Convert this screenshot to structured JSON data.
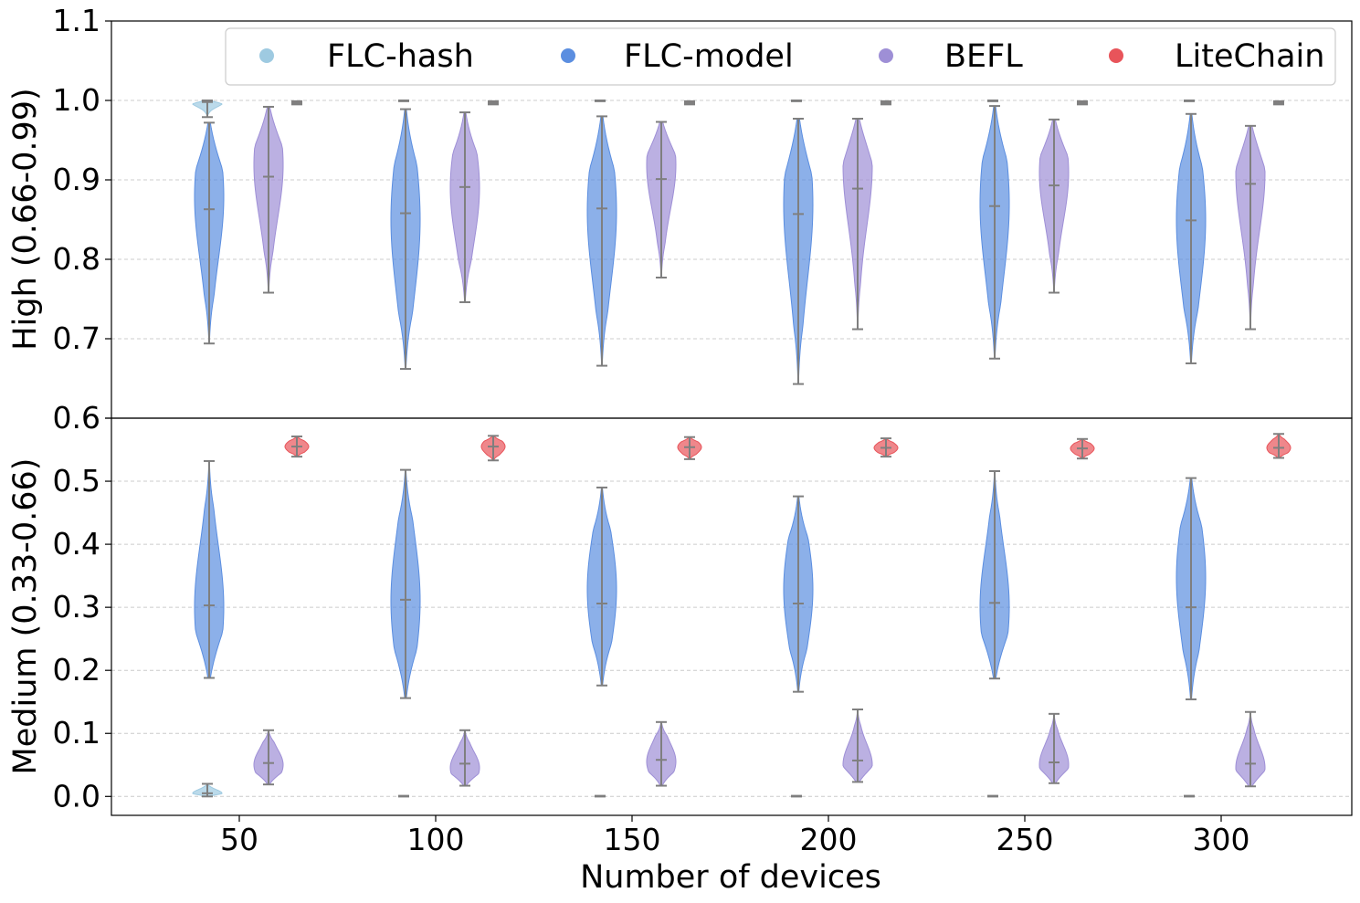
{
  "chart_data": {
    "type": "violin",
    "xlabel": "Number of devices",
    "groups": [
      50,
      100,
      150,
      200,
      250,
      300
    ],
    "series_names": [
      "FLC-hash",
      "FLC-model",
      "BEFL",
      "LiteChain"
    ],
    "colors": {
      "FLC-hash": "#9ecae1",
      "FLC-model": "#5b8ee0",
      "BEFL": "#9e8fd6",
      "LiteChain": "#e8545a"
    },
    "whisker_color": "#7f7f7f",
    "legend": {
      "placement": "top",
      "entries": [
        "FLC-hash",
        "FLC-model",
        "BEFL",
        "LiteChain"
      ]
    },
    "panels": [
      {
        "name": "top",
        "ylabel": "High (0.66-0.99)",
        "ylim": [
          0.6,
          1.1
        ],
        "yticks": [
          "0.6",
          "0.7",
          "0.8",
          "0.9",
          "1.0",
          "1.1"
        ],
        "grid": true,
        "series": [
          {
            "name": "FLC-hash",
            "data": [
              {
                "min": 0.979,
                "median": 0.998,
                "max": 1.0,
                "mode": 0.998
              },
              {
                "min": 0.999,
                "median": 1.0,
                "max": 1.0,
                "mode": 1.0
              },
              {
                "min": 0.999,
                "median": 1.0,
                "max": 1.0,
                "mode": 1.0
              },
              {
                "min": 0.999,
                "median": 1.0,
                "max": 1.0,
                "mode": 1.0
              },
              {
                "min": 0.999,
                "median": 1.0,
                "max": 1.0,
                "mode": 1.0
              },
              {
                "min": 0.999,
                "median": 1.0,
                "max": 1.0,
                "mode": 1.0
              }
            ]
          },
          {
            "name": "FLC-model",
            "data": [
              {
                "min": 0.694,
                "median": 0.863,
                "max": 0.972,
                "mode": 0.88
              },
              {
                "min": 0.662,
                "median": 0.858,
                "max": 0.989,
                "mode": 0.85
              },
              {
                "min": 0.666,
                "median": 0.864,
                "max": 0.98,
                "mode": 0.86
              },
              {
                "min": 0.643,
                "median": 0.857,
                "max": 0.977,
                "mode": 0.87
              },
              {
                "min": 0.675,
                "median": 0.867,
                "max": 0.993,
                "mode": 0.87
              },
              {
                "min": 0.669,
                "median": 0.849,
                "max": 0.983,
                "mode": 0.85
              }
            ]
          },
          {
            "name": "BEFL",
            "data": [
              {
                "min": 0.758,
                "median": 0.904,
                "max": 0.992,
                "mode": 0.92
              },
              {
                "min": 0.746,
                "median": 0.891,
                "max": 0.985,
                "mode": 0.89
              },
              {
                "min": 0.777,
                "median": 0.901,
                "max": 0.973,
                "mode": 0.92
              },
              {
                "min": 0.712,
                "median": 0.889,
                "max": 0.977,
                "mode": 0.92
              },
              {
                "min": 0.758,
                "median": 0.893,
                "max": 0.976,
                "mode": 0.91
              },
              {
                "min": 0.712,
                "median": 0.895,
                "max": 0.968,
                "mode": 0.91
              }
            ]
          },
          {
            "name": "LiteChain",
            "data": [
              {
                "min": 0.995,
                "median": 0.997,
                "max": 0.999,
                "mode": 0.997
              },
              {
                "min": 0.995,
                "median": 0.997,
                "max": 0.999,
                "mode": 0.997
              },
              {
                "min": 0.995,
                "median": 0.997,
                "max": 0.999,
                "mode": 0.997
              },
              {
                "min": 0.995,
                "median": 0.997,
                "max": 0.999,
                "mode": 0.997
              },
              {
                "min": 0.995,
                "median": 0.997,
                "max": 0.999,
                "mode": 0.997
              },
              {
                "min": 0.995,
                "median": 0.997,
                "max": 0.999,
                "mode": 0.997
              }
            ]
          }
        ]
      },
      {
        "name": "bottom",
        "ylabel": "Medium (0.33-0.66)",
        "ylim": [
          -0.03,
          0.6
        ],
        "yticks": [
          "0.0",
          "0.1",
          "0.2",
          "0.3",
          "0.4",
          "0.5",
          "0.6"
        ],
        "grid": true,
        "series": [
          {
            "name": "FLC-hash",
            "data": [
              {
                "min": 0.0,
                "median": 0.005,
                "max": 0.02,
                "mode": 0.005
              },
              {
                "min": 0.0,
                "median": 0.0,
                "max": 0.001,
                "mode": 0.0
              },
              {
                "min": 0.0,
                "median": 0.0,
                "max": 0.001,
                "mode": 0.0
              },
              {
                "min": 0.0,
                "median": 0.0,
                "max": 0.001,
                "mode": 0.0
              },
              {
                "min": 0.0,
                "median": 0.0,
                "max": 0.001,
                "mode": 0.0
              },
              {
                "min": 0.0,
                "median": 0.0,
                "max": 0.001,
                "mode": 0.0
              }
            ]
          },
          {
            "name": "FLC-model",
            "data": [
              {
                "min": 0.188,
                "median": 0.303,
                "max": 0.532,
                "mode": 0.3
              },
              {
                "min": 0.156,
                "median": 0.312,
                "max": 0.518,
                "mode": 0.31
              },
              {
                "min": 0.176,
                "median": 0.306,
                "max": 0.49,
                "mode": 0.33
              },
              {
                "min": 0.166,
                "median": 0.306,
                "max": 0.476,
                "mode": 0.33
              },
              {
                "min": 0.187,
                "median": 0.307,
                "max": 0.516,
                "mode": 0.3
              },
              {
                "min": 0.154,
                "median": 0.3,
                "max": 0.505,
                "mode": 0.35
              }
            ]
          },
          {
            "name": "BEFL",
            "data": [
              {
                "min": 0.019,
                "median": 0.053,
                "max": 0.105,
                "mode": 0.05
              },
              {
                "min": 0.017,
                "median": 0.052,
                "max": 0.105,
                "mode": 0.045
              },
              {
                "min": 0.017,
                "median": 0.058,
                "max": 0.118,
                "mode": 0.055
              },
              {
                "min": 0.023,
                "median": 0.057,
                "max": 0.138,
                "mode": 0.05
              },
              {
                "min": 0.021,
                "median": 0.054,
                "max": 0.131,
                "mode": 0.05
              },
              {
                "min": 0.016,
                "median": 0.052,
                "max": 0.134,
                "mode": 0.045
              }
            ]
          },
          {
            "name": "LiteChain",
            "data": [
              {
                "min": 0.539,
                "median": 0.555,
                "max": 0.571,
                "mode": 0.555
              },
              {
                "min": 0.533,
                "median": 0.555,
                "max": 0.572,
                "mode": 0.555
              },
              {
                "min": 0.535,
                "median": 0.554,
                "max": 0.57,
                "mode": 0.554
              },
              {
                "min": 0.539,
                "median": 0.553,
                "max": 0.568,
                "mode": 0.553
              },
              {
                "min": 0.536,
                "median": 0.552,
                "max": 0.567,
                "mode": 0.552
              },
              {
                "min": 0.537,
                "median": 0.553,
                "max": 0.575,
                "mode": 0.553
              }
            ]
          }
        ]
      }
    ]
  }
}
